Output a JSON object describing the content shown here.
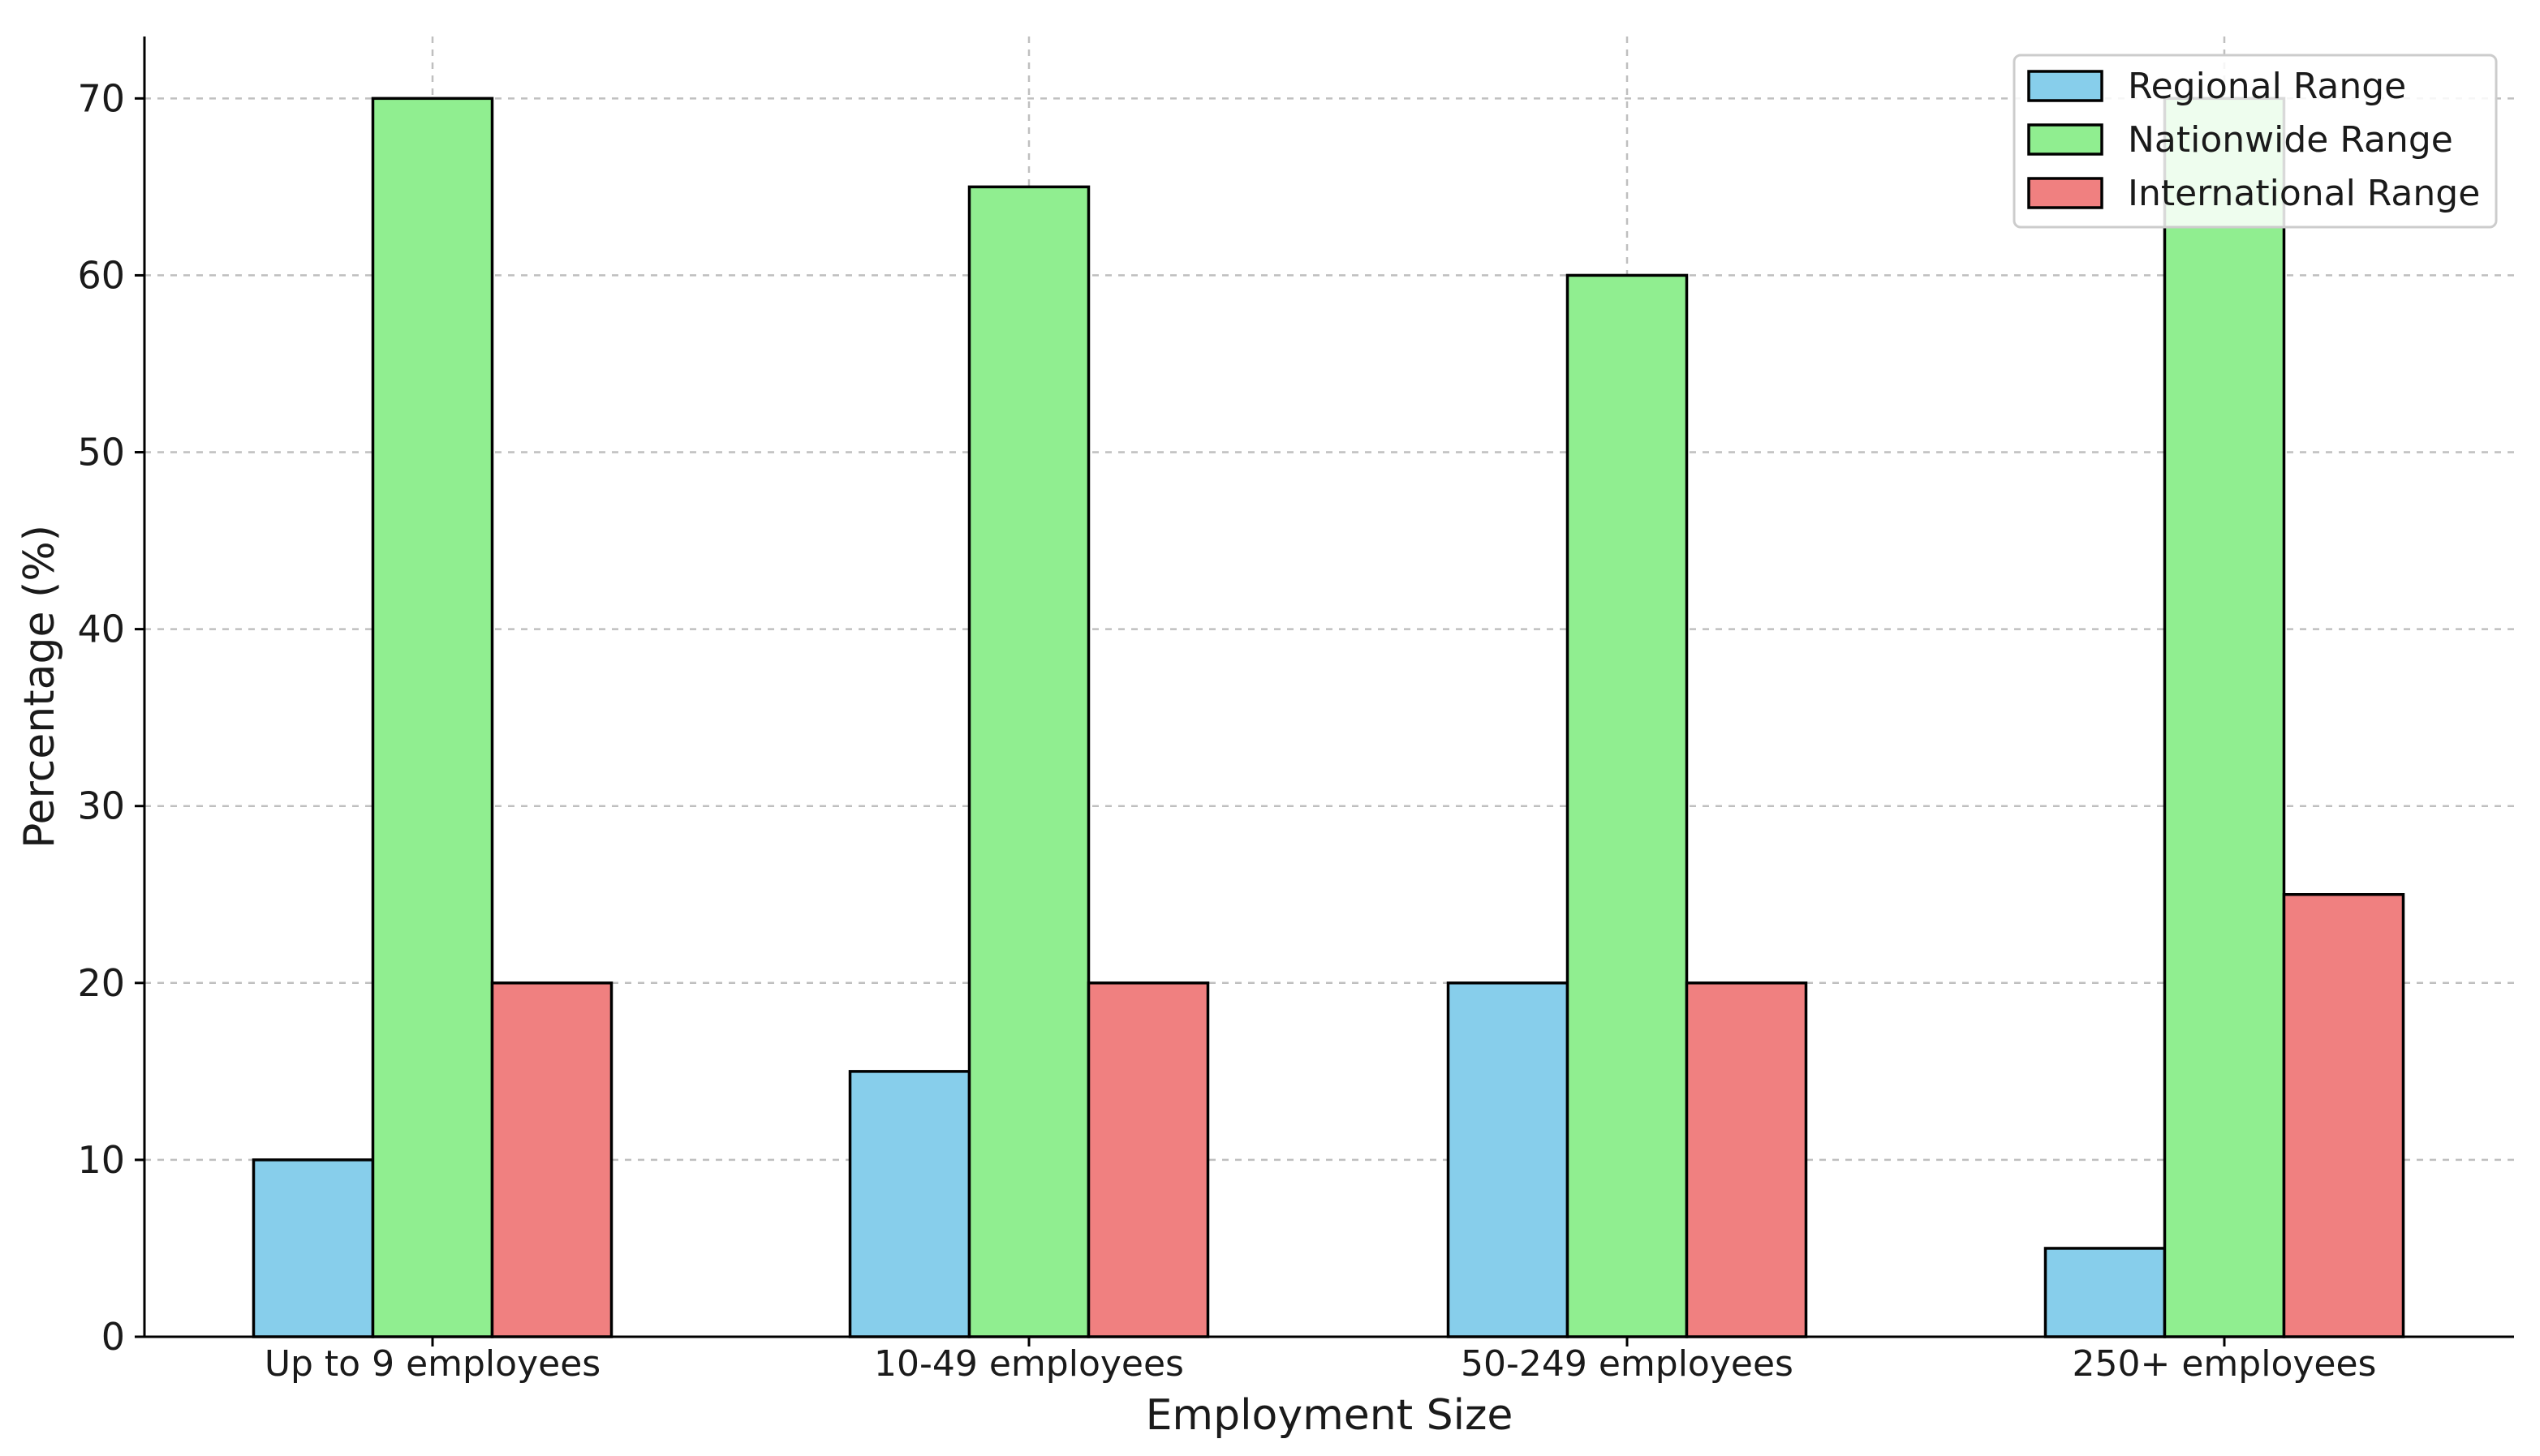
{
  "chart_data": {
    "type": "bar",
    "title": "",
    "xlabel": "Employment Size",
    "ylabel": "Percentage (%)",
    "categories": [
      "Up to 9 employees",
      "10-49 employees",
      "50-249 employees",
      "250+ employees"
    ],
    "series": [
      {
        "name": "Regional Range",
        "color": "#87ceeb",
        "values": [
          10,
          15,
          20,
          5
        ]
      },
      {
        "name": "Nationwide Range",
        "color": "#90ee90",
        "values": [
          70,
          65,
          60,
          70
        ]
      },
      {
        "name": "International Range",
        "color": "#f08080",
        "values": [
          20,
          20,
          20,
          25
        ]
      }
    ],
    "ylim": [
      0,
      73.5
    ],
    "yticks": [
      "0",
      "10",
      "20",
      "30",
      "40",
      "50",
      "60",
      "70"
    ],
    "grid": true,
    "legend": "top-right"
  }
}
